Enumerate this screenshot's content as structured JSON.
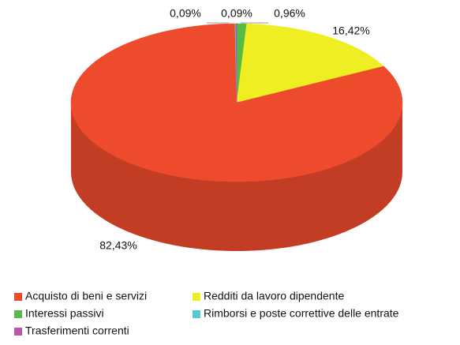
{
  "chart_data": {
    "type": "pie",
    "categories": [
      "Acquisto di beni e servizi",
      "Redditi da lavoro dipendente",
      "Interessi passivi",
      "Rimborsi e poste correttive delle entrate",
      "Trasferimenti correnti"
    ],
    "values": [
      82.43,
      16.42,
      0.96,
      0.09,
      0.09
    ],
    "value_labels": [
      "82,43%",
      "16,42%",
      "0,96%",
      "0,09%",
      "0,09%"
    ],
    "colors": [
      "#ee4a2c",
      "#eeee22",
      "#55bb44",
      "#55c8d8",
      "#bb55aa"
    ],
    "legend": "bottom"
  }
}
